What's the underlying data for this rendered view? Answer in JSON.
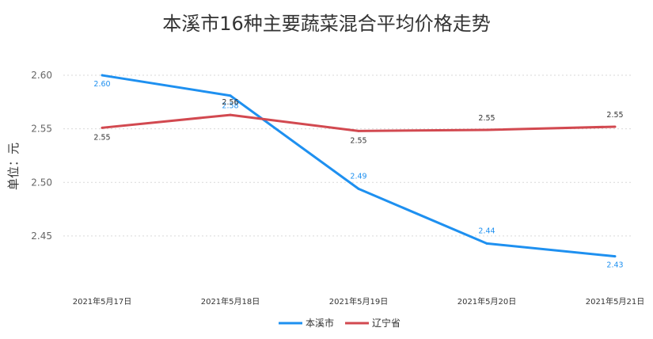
{
  "chart_data": {
    "type": "line",
    "title": "本溪市16种主要蔬菜混合平均价格走势",
    "ylabel": "单位：元",
    "xlabel": "",
    "categories": [
      "2021年5月17日",
      "2021年5月18日",
      "2021年5月19日",
      "2021年5月20日",
      "2021年5月21日"
    ],
    "ylim": [
      2.41,
      2.62
    ],
    "yticks": [
      2.45,
      2.5,
      2.55,
      2.6
    ],
    "ytick_labels": [
      "2.45",
      "2.50",
      "2.55",
      "2.60"
    ],
    "grid": true,
    "legend_position": "bottom-center",
    "series": [
      {
        "name": "本溪市",
        "color": "#1e90f0",
        "values": [
          2.6,
          2.581,
          2.494,
          2.443,
          2.431
        ],
        "labels": [
          "2.60",
          "2.58",
          "2.49",
          "2.44",
          "2.43"
        ]
      },
      {
        "name": "辽宁省",
        "color": "#d24950",
        "values": [
          2.551,
          2.563,
          2.548,
          2.549,
          2.552
        ],
        "labels": [
          "2.55",
          "2.56",
          "2.55",
          "2.55",
          "2.55"
        ]
      }
    ]
  }
}
